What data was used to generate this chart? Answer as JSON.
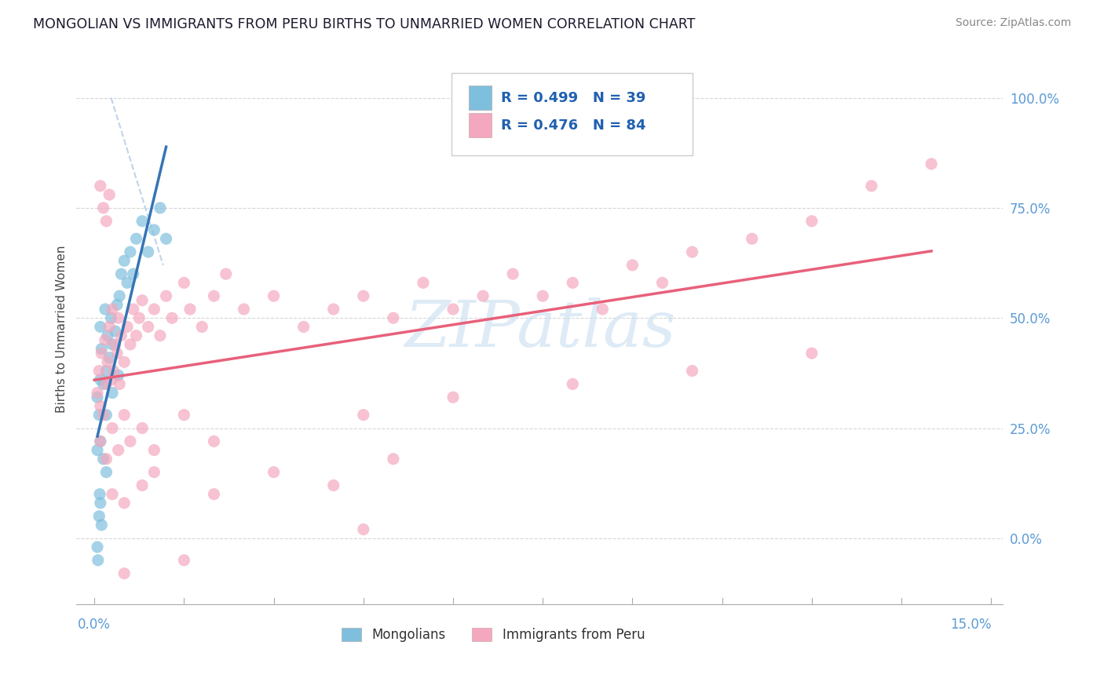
{
  "title": "MONGOLIAN VS IMMIGRANTS FROM PERU BIRTHS TO UNMARRIED WOMEN CORRELATION CHART",
  "source": "Source: ZipAtlas.com",
  "ylabel": "Births to Unmarried Women",
  "xlim": [
    0.0,
    15.0
  ],
  "ylim": [
    -15.0,
    110.0
  ],
  "yticks": [
    0.0,
    25.0,
    50.0,
    75.0,
    100.0
  ],
  "mongolian_color": "#7fbfde",
  "peru_color": "#f4a8bf",
  "mongolian_line_color": "#3575b5",
  "peru_line_color": "#e8607a",
  "dashed_line_color": "#b8cfe8",
  "watermark_color": "#c8dff0",
  "legend_r_mongolian": "R = 0.499",
  "legend_n_mongolian": "N = 39",
  "legend_r_peru": "R = 0.476",
  "legend_n_peru": "N = 84",
  "mongolian_scatter": [
    [
      0.05,
      32.0
    ],
    [
      0.08,
      28.0
    ],
    [
      0.1,
      48.0
    ],
    [
      0.1,
      36.0
    ],
    [
      0.12,
      43.0
    ],
    [
      0.15,
      35.0
    ],
    [
      0.18,
      52.0
    ],
    [
      0.2,
      28.0
    ],
    [
      0.2,
      38.0
    ],
    [
      0.22,
      46.0
    ],
    [
      0.25,
      41.0
    ],
    [
      0.28,
      50.0
    ],
    [
      0.3,
      33.0
    ],
    [
      0.3,
      44.0
    ],
    [
      0.35,
      47.0
    ],
    [
      0.38,
      53.0
    ],
    [
      0.4,
      37.0
    ],
    [
      0.42,
      55.0
    ],
    [
      0.45,
      60.0
    ],
    [
      0.5,
      63.0
    ],
    [
      0.55,
      58.0
    ],
    [
      0.6,
      65.0
    ],
    [
      0.65,
      60.0
    ],
    [
      0.7,
      68.0
    ],
    [
      0.8,
      72.0
    ],
    [
      0.9,
      65.0
    ],
    [
      1.0,
      70.0
    ],
    [
      1.1,
      75.0
    ],
    [
      1.2,
      68.0
    ],
    [
      0.05,
      20.0
    ],
    [
      0.1,
      22.0
    ],
    [
      0.15,
      18.0
    ],
    [
      0.2,
      15.0
    ],
    [
      0.05,
      -2.0
    ],
    [
      0.08,
      5.0
    ],
    [
      0.1,
      8.0
    ],
    [
      0.12,
      3.0
    ],
    [
      0.06,
      -5.0
    ],
    [
      0.09,
      10.0
    ]
  ],
  "peru_scatter": [
    [
      0.05,
      33.0
    ],
    [
      0.08,
      38.0
    ],
    [
      0.1,
      30.0
    ],
    [
      0.12,
      42.0
    ],
    [
      0.15,
      28.0
    ],
    [
      0.18,
      45.0
    ],
    [
      0.2,
      35.0
    ],
    [
      0.22,
      40.0
    ],
    [
      0.25,
      48.0
    ],
    [
      0.28,
      36.0
    ],
    [
      0.3,
      52.0
    ],
    [
      0.32,
      38.0
    ],
    [
      0.35,
      44.0
    ],
    [
      0.38,
      42.0
    ],
    [
      0.4,
      50.0
    ],
    [
      0.42,
      35.0
    ],
    [
      0.45,
      46.0
    ],
    [
      0.5,
      40.0
    ],
    [
      0.55,
      48.0
    ],
    [
      0.6,
      44.0
    ],
    [
      0.65,
      52.0
    ],
    [
      0.7,
      46.0
    ],
    [
      0.75,
      50.0
    ],
    [
      0.8,
      54.0
    ],
    [
      0.9,
      48.0
    ],
    [
      1.0,
      52.0
    ],
    [
      1.1,
      46.0
    ],
    [
      1.2,
      55.0
    ],
    [
      1.3,
      50.0
    ],
    [
      1.5,
      58.0
    ],
    [
      1.6,
      52.0
    ],
    [
      1.8,
      48.0
    ],
    [
      2.0,
      55.0
    ],
    [
      2.2,
      60.0
    ],
    [
      2.5,
      52.0
    ],
    [
      3.0,
      55.0
    ],
    [
      3.5,
      48.0
    ],
    [
      4.0,
      52.0
    ],
    [
      4.5,
      55.0
    ],
    [
      5.0,
      50.0
    ],
    [
      5.5,
      58.0
    ],
    [
      6.0,
      52.0
    ],
    [
      6.5,
      55.0
    ],
    [
      7.0,
      60.0
    ],
    [
      7.5,
      55.0
    ],
    [
      8.0,
      58.0
    ],
    [
      8.5,
      52.0
    ],
    [
      9.0,
      62.0
    ],
    [
      9.5,
      58.0
    ],
    [
      10.0,
      65.0
    ],
    [
      11.0,
      68.0
    ],
    [
      12.0,
      72.0
    ],
    [
      13.0,
      80.0
    ],
    [
      14.0,
      85.0
    ],
    [
      0.1,
      80.0
    ],
    [
      0.15,
      75.0
    ],
    [
      0.2,
      72.0
    ],
    [
      0.25,
      78.0
    ],
    [
      0.1,
      22.0
    ],
    [
      0.2,
      18.0
    ],
    [
      0.3,
      25.0
    ],
    [
      0.4,
      20.0
    ],
    [
      0.5,
      28.0
    ],
    [
      0.6,
      22.0
    ],
    [
      0.8,
      25.0
    ],
    [
      1.0,
      20.0
    ],
    [
      1.5,
      28.0
    ],
    [
      2.0,
      22.0
    ],
    [
      0.3,
      10.0
    ],
    [
      0.5,
      8.0
    ],
    [
      0.8,
      12.0
    ],
    [
      1.0,
      15.0
    ],
    [
      2.0,
      10.0
    ],
    [
      3.0,
      15.0
    ],
    [
      4.0,
      12.0
    ],
    [
      5.0,
      18.0
    ],
    [
      4.5,
      28.0
    ],
    [
      6.0,
      32.0
    ],
    [
      8.0,
      35.0
    ],
    [
      10.0,
      38.0
    ],
    [
      12.0,
      42.0
    ],
    [
      0.5,
      -8.0
    ],
    [
      1.5,
      -5.0
    ],
    [
      4.5,
      2.0
    ]
  ]
}
